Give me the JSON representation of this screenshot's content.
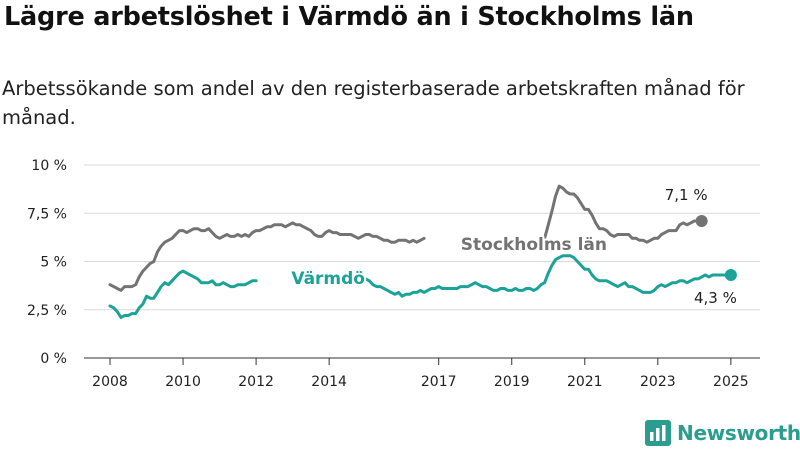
{
  "title": "Lägre arbetslöshet i Värmdö än i Stockholms län",
  "subtitle": "Arbetssökande som andel av den registerbaserade arbetskraften månad för månad.",
  "logo": {
    "text": "Newsworthy",
    "icon": "newsworthy-logo-icon",
    "color": "#2a9d8f"
  },
  "chart_data": {
    "type": "line",
    "xlim": [
      2008,
      2025.25
    ],
    "ylim": [
      0,
      10
    ],
    "grid": true,
    "yticks": [
      {
        "value": 0,
        "label": "0 %"
      },
      {
        "value": 2.5,
        "label": "2,5 %"
      },
      {
        "value": 5,
        "label": "5 %"
      },
      {
        "value": 7.5,
        "label": "7,5 %"
      },
      {
        "value": 10,
        "label": "10 %"
      }
    ],
    "xticks": [
      {
        "value": 2008,
        "label": "2008"
      },
      {
        "value": 2010,
        "label": "2010"
      },
      {
        "value": 2012,
        "label": "2012"
      },
      {
        "value": 2014,
        "label": "2014"
      },
      {
        "value": 2017,
        "label": "2017"
      },
      {
        "value": 2019,
        "label": "2019"
      },
      {
        "value": 2021,
        "label": "2021"
      },
      {
        "value": 2023,
        "label": "2023"
      },
      {
        "value": 2025,
        "label": "2025"
      }
    ],
    "series": [
      {
        "name": "Stockholms län",
        "color": "#737373",
        "end_label": "7,1 %",
        "points": [
          [
            2008.0,
            3.8
          ],
          [
            2008.1,
            3.7
          ],
          [
            2008.2,
            3.6
          ],
          [
            2008.3,
            3.5
          ],
          [
            2008.4,
            3.7
          ],
          [
            2008.5,
            3.7
          ],
          [
            2008.6,
            3.7
          ],
          [
            2008.7,
            3.8
          ],
          [
            2008.8,
            4.2
          ],
          [
            2008.9,
            4.5
          ],
          [
            2009.0,
            4.7
          ],
          [
            2009.1,
            4.9
          ],
          [
            2009.2,
            5.0
          ],
          [
            2009.3,
            5.5
          ],
          [
            2009.4,
            5.8
          ],
          [
            2009.5,
            6.0
          ],
          [
            2009.6,
            6.1
          ],
          [
            2009.7,
            6.2
          ],
          [
            2009.8,
            6.4
          ],
          [
            2009.9,
            6.6
          ],
          [
            2010.0,
            6.6
          ],
          [
            2010.1,
            6.5
          ],
          [
            2010.2,
            6.6
          ],
          [
            2010.3,
            6.7
          ],
          [
            2010.4,
            6.7
          ],
          [
            2010.5,
            6.6
          ],
          [
            2010.6,
            6.6
          ],
          [
            2010.7,
            6.7
          ],
          [
            2010.8,
            6.5
          ],
          [
            2010.9,
            6.3
          ],
          [
            2011.0,
            6.2
          ],
          [
            2011.1,
            6.3
          ],
          [
            2011.2,
            6.4
          ],
          [
            2011.3,
            6.3
          ],
          [
            2011.4,
            6.3
          ],
          [
            2011.5,
            6.4
          ],
          [
            2011.6,
            6.3
          ],
          [
            2011.7,
            6.4
          ],
          [
            2011.8,
            6.3
          ],
          [
            2011.9,
            6.5
          ],
          [
            2012.0,
            6.6
          ],
          [
            2012.1,
            6.6
          ],
          [
            2012.2,
            6.7
          ],
          [
            2012.3,
            6.8
          ],
          [
            2012.4,
            6.8
          ],
          [
            2012.5,
            6.9
          ],
          [
            2012.6,
            6.9
          ],
          [
            2012.7,
            6.9
          ],
          [
            2012.8,
            6.8
          ],
          [
            2012.9,
            6.9
          ],
          [
            2013.0,
            7.0
          ],
          [
            2013.1,
            6.9
          ],
          [
            2013.2,
            6.9
          ],
          [
            2013.3,
            6.8
          ],
          [
            2013.4,
            6.7
          ],
          [
            2013.5,
            6.6
          ],
          [
            2013.6,
            6.4
          ],
          [
            2013.7,
            6.3
          ],
          [
            2013.8,
            6.3
          ],
          [
            2013.9,
            6.5
          ],
          [
            2014.0,
            6.6
          ],
          [
            2014.1,
            6.5
          ],
          [
            2014.2,
            6.5
          ],
          [
            2014.3,
            6.4
          ],
          [
            2014.4,
            6.4
          ],
          [
            2014.5,
            6.4
          ],
          [
            2014.6,
            6.4
          ],
          [
            2014.7,
            6.3
          ],
          [
            2014.8,
            6.2
          ],
          [
            2014.9,
            6.3
          ],
          [
            2015.0,
            6.4
          ],
          [
            2015.1,
            6.4
          ],
          [
            2015.2,
            6.3
          ],
          [
            2015.3,
            6.3
          ],
          [
            2015.4,
            6.2
          ],
          [
            2015.5,
            6.1
          ],
          [
            2015.6,
            6.1
          ],
          [
            2015.7,
            6.0
          ],
          [
            2015.8,
            6.0
          ],
          [
            2015.9,
            6.1
          ],
          [
            2016.0,
            6.1
          ],
          [
            2016.1,
            6.1
          ],
          [
            2016.2,
            6.0
          ],
          [
            2016.3,
            6.1
          ],
          [
            2016.4,
            6.0
          ],
          [
            2016.5,
            6.1
          ],
          [
            2016.6,
            6.2
          ],
          null,
          [
            2019.9,
            6.2
          ],
          [
            2020.0,
            6.9
          ],
          [
            2020.1,
            7.6
          ],
          [
            2020.2,
            8.4
          ],
          [
            2020.3,
            8.9
          ],
          [
            2020.4,
            8.8
          ],
          [
            2020.5,
            8.6
          ],
          [
            2020.6,
            8.5
          ],
          [
            2020.7,
            8.5
          ],
          [
            2020.8,
            8.3
          ],
          [
            2020.9,
            8.0
          ],
          [
            2021.0,
            7.7
          ],
          [
            2021.1,
            7.7
          ],
          [
            2021.2,
            7.4
          ],
          [
            2021.3,
            7.0
          ],
          [
            2021.4,
            6.7
          ],
          [
            2021.5,
            6.7
          ],
          [
            2021.6,
            6.6
          ],
          [
            2021.7,
            6.4
          ],
          [
            2021.8,
            6.3
          ],
          [
            2021.9,
            6.4
          ],
          [
            2022.0,
            6.4
          ],
          [
            2022.1,
            6.4
          ],
          [
            2022.2,
            6.4
          ],
          [
            2022.3,
            6.2
          ],
          [
            2022.4,
            6.2
          ],
          [
            2022.5,
            6.1
          ],
          [
            2022.6,
            6.1
          ],
          [
            2022.7,
            6.0
          ],
          [
            2022.8,
            6.1
          ],
          [
            2022.9,
            6.2
          ],
          [
            2023.0,
            6.2
          ],
          [
            2023.1,
            6.4
          ],
          [
            2023.2,
            6.5
          ],
          [
            2023.3,
            6.6
          ],
          [
            2023.4,
            6.6
          ],
          [
            2023.5,
            6.6
          ],
          [
            2023.6,
            6.9
          ],
          [
            2023.7,
            7.0
          ],
          [
            2023.8,
            6.9
          ],
          [
            2023.9,
            7.0
          ],
          [
            2024.0,
            7.1
          ],
          [
            2024.1,
            7.1
          ],
          [
            2024.2,
            7.1
          ]
        ]
      },
      {
        "name": "Värmdö",
        "color": "#1aa396",
        "end_label": "4,3 %",
        "points": [
          [
            2008.0,
            2.7
          ],
          [
            2008.1,
            2.6
          ],
          [
            2008.2,
            2.4
          ],
          [
            2008.3,
            2.1
          ],
          [
            2008.4,
            2.2
          ],
          [
            2008.5,
            2.2
          ],
          [
            2008.6,
            2.3
          ],
          [
            2008.7,
            2.3
          ],
          [
            2008.8,
            2.6
          ],
          [
            2008.9,
            2.8
          ],
          [
            2009.0,
            3.2
          ],
          [
            2009.1,
            3.1
          ],
          [
            2009.2,
            3.1
          ],
          [
            2009.3,
            3.4
          ],
          [
            2009.4,
            3.7
          ],
          [
            2009.5,
            3.9
          ],
          [
            2009.6,
            3.8
          ],
          [
            2009.7,
            4.0
          ],
          [
            2009.8,
            4.2
          ],
          [
            2009.9,
            4.4
          ],
          [
            2010.0,
            4.5
          ],
          [
            2010.1,
            4.4
          ],
          [
            2010.2,
            4.3
          ],
          [
            2010.3,
            4.2
          ],
          [
            2010.4,
            4.1
          ],
          [
            2010.5,
            3.9
          ],
          [
            2010.6,
            3.9
          ],
          [
            2010.7,
            3.9
          ],
          [
            2010.8,
            4.0
          ],
          [
            2010.9,
            3.8
          ],
          [
            2011.0,
            3.8
          ],
          [
            2011.1,
            3.9
          ],
          [
            2011.2,
            3.8
          ],
          [
            2011.3,
            3.7
          ],
          [
            2011.4,
            3.7
          ],
          [
            2011.5,
            3.8
          ],
          [
            2011.6,
            3.8
          ],
          [
            2011.7,
            3.8
          ],
          [
            2011.8,
            3.9
          ],
          [
            2011.9,
            4.0
          ],
          [
            2012.0,
            4.0
          ],
          null,
          [
            2014.4,
            4.2
          ],
          [
            2014.5,
            4.0
          ],
          [
            2014.6,
            4.0
          ],
          [
            2014.7,
            3.9
          ],
          [
            2014.8,
            3.8
          ],
          [
            2014.9,
            4.0
          ],
          [
            2015.0,
            4.1
          ],
          [
            2015.1,
            4.0
          ],
          [
            2015.2,
            3.8
          ],
          [
            2015.3,
            3.7
          ],
          [
            2015.4,
            3.7
          ],
          [
            2015.5,
            3.6
          ],
          [
            2015.6,
            3.5
          ],
          [
            2015.7,
            3.4
          ],
          [
            2015.8,
            3.3
          ],
          [
            2015.9,
            3.4
          ],
          [
            2016.0,
            3.2
          ],
          [
            2016.1,
            3.3
          ],
          [
            2016.2,
            3.3
          ],
          [
            2016.3,
            3.4
          ],
          [
            2016.4,
            3.4
          ],
          [
            2016.5,
            3.5
          ],
          [
            2016.6,
            3.4
          ],
          [
            2016.7,
            3.5
          ],
          [
            2016.8,
            3.6
          ],
          [
            2016.9,
            3.6
          ],
          [
            2017.0,
            3.7
          ],
          [
            2017.1,
            3.6
          ],
          [
            2017.2,
            3.6
          ],
          [
            2017.3,
            3.6
          ],
          [
            2017.4,
            3.6
          ],
          [
            2017.5,
            3.6
          ],
          [
            2017.6,
            3.7
          ],
          [
            2017.7,
            3.7
          ],
          [
            2017.8,
            3.7
          ],
          [
            2017.9,
            3.8
          ],
          [
            2018.0,
            3.9
          ],
          [
            2018.1,
            3.8
          ],
          [
            2018.2,
            3.7
          ],
          [
            2018.3,
            3.7
          ],
          [
            2018.4,
            3.6
          ],
          [
            2018.5,
            3.5
          ],
          [
            2018.6,
            3.5
          ],
          [
            2018.7,
            3.6
          ],
          [
            2018.8,
            3.6
          ],
          [
            2018.9,
            3.5
          ],
          [
            2019.0,
            3.5
          ],
          [
            2019.1,
            3.6
          ],
          [
            2019.2,
            3.5
          ],
          [
            2019.3,
            3.5
          ],
          [
            2019.4,
            3.6
          ],
          [
            2019.5,
            3.6
          ],
          [
            2019.6,
            3.5
          ],
          [
            2019.7,
            3.6
          ],
          [
            2019.8,
            3.8
          ],
          [
            2019.9,
            3.9
          ],
          [
            2020.0,
            4.4
          ],
          [
            2020.1,
            4.8
          ],
          [
            2020.2,
            5.1
          ],
          [
            2020.3,
            5.2
          ],
          [
            2020.4,
            5.3
          ],
          [
            2020.5,
            5.3
          ],
          [
            2020.6,
            5.3
          ],
          [
            2020.7,
            5.2
          ],
          [
            2020.8,
            5.0
          ],
          [
            2020.9,
            4.8
          ],
          [
            2021.0,
            4.6
          ],
          [
            2021.1,
            4.6
          ],
          [
            2021.2,
            4.3
          ],
          [
            2021.3,
            4.1
          ],
          [
            2021.4,
            4.0
          ],
          [
            2021.5,
            4.0
          ],
          [
            2021.6,
            4.0
          ],
          [
            2021.7,
            3.9
          ],
          [
            2021.8,
            3.8
          ],
          [
            2021.9,
            3.7
          ],
          [
            2022.0,
            3.8
          ],
          [
            2022.1,
            3.9
          ],
          [
            2022.2,
            3.7
          ],
          [
            2022.3,
            3.7
          ],
          [
            2022.4,
            3.6
          ],
          [
            2022.5,
            3.5
          ],
          [
            2022.6,
            3.4
          ],
          [
            2022.7,
            3.4
          ],
          [
            2022.8,
            3.4
          ],
          [
            2022.9,
            3.5
          ],
          [
            2023.0,
            3.7
          ],
          [
            2023.1,
            3.8
          ],
          [
            2023.2,
            3.7
          ],
          [
            2023.3,
            3.8
          ],
          [
            2023.4,
            3.9
          ],
          [
            2023.5,
            3.9
          ],
          [
            2023.6,
            4.0
          ],
          [
            2023.7,
            4.0
          ],
          [
            2023.8,
            3.9
          ],
          [
            2023.9,
            4.0
          ],
          [
            2024.0,
            4.1
          ],
          [
            2024.1,
            4.1
          ],
          [
            2024.2,
            4.2
          ],
          [
            2024.3,
            4.3
          ],
          [
            2024.4,
            4.2
          ],
          [
            2024.5,
            4.3
          ],
          [
            2024.6,
            4.3
          ],
          [
            2024.7,
            4.3
          ],
          [
            2025.0,
            4.3
          ]
        ]
      }
    ]
  }
}
